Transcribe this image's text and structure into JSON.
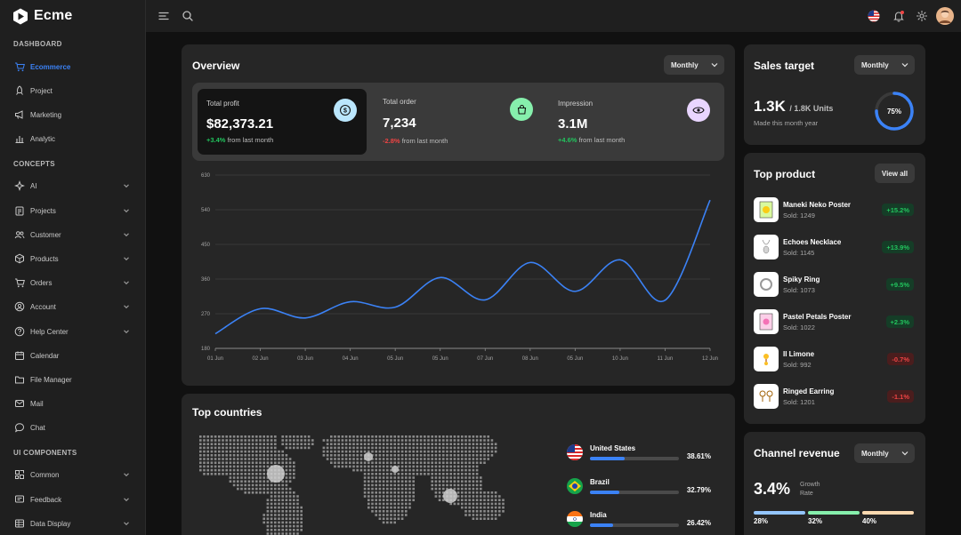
{
  "app": {
    "name": "Ecme"
  },
  "sidebar": {
    "sections": [
      {
        "title": "DASHBOARD",
        "items": [
          {
            "label": "Ecommerce",
            "icon": "cart-icon",
            "active": true,
            "has_children": false
          },
          {
            "label": "Project",
            "icon": "rocket-icon",
            "has_children": false
          },
          {
            "label": "Marketing",
            "icon": "megaphone-icon",
            "has_children": false
          },
          {
            "label": "Analytic",
            "icon": "bar-chart-icon",
            "has_children": false
          }
        ]
      },
      {
        "title": "CONCEPTS",
        "items": [
          {
            "label": "AI",
            "icon": "sparkle-icon",
            "has_children": true
          },
          {
            "label": "Projects",
            "icon": "clipboard-icon",
            "has_children": true
          },
          {
            "label": "Customer",
            "icon": "users-icon",
            "has_children": true
          },
          {
            "label": "Products",
            "icon": "box-icon",
            "has_children": true
          },
          {
            "label": "Orders",
            "icon": "cart-icon",
            "has_children": true
          },
          {
            "label": "Account",
            "icon": "user-circle-icon",
            "has_children": true
          },
          {
            "label": "Help Center",
            "icon": "help-icon",
            "has_children": true
          },
          {
            "label": "Calendar",
            "icon": "calendar-icon",
            "has_children": false
          },
          {
            "label": "File Manager",
            "icon": "folder-icon",
            "has_children": false
          },
          {
            "label": "Mail",
            "icon": "mail-icon",
            "has_children": false
          },
          {
            "label": "Chat",
            "icon": "chat-icon",
            "has_children": false
          }
        ]
      },
      {
        "title": "UI COMPONENTS",
        "items": [
          {
            "label": "Common",
            "icon": "layout-icon",
            "has_children": true
          },
          {
            "label": "Feedback",
            "icon": "feedback-icon",
            "has_children": true
          },
          {
            "label": "Data Display",
            "icon": "table-icon",
            "has_children": true
          }
        ]
      }
    ]
  },
  "overview": {
    "title": "Overview",
    "period": "Monthly",
    "stats": [
      {
        "label": "Total profit",
        "value": "$82,373.21",
        "change": "+3.4%",
        "suffix": "from last month",
        "trend": "up",
        "icon": "dollar-icon",
        "icon_bg": "#bae6fd"
      },
      {
        "label": "Total order",
        "value": "7,234",
        "change": "-2.8%",
        "suffix": "from last month",
        "trend": "down",
        "icon": "shopping-bag-icon",
        "icon_bg": "#86efac"
      },
      {
        "label": "Impression",
        "value": "3.1M",
        "change": "+4.6%",
        "suffix": "from last month",
        "trend": "up",
        "icon": "eye-icon",
        "icon_bg": "#e9d5ff"
      }
    ]
  },
  "chart_data": {
    "type": "line",
    "x": [
      "01 Jun",
      "02 Jun",
      "03 Jun",
      "04 Jun",
      "05 Jun",
      "05 Jun",
      "07 Jun",
      "08 Jun",
      "05 Jun",
      "10 Jun",
      "11 Jun",
      "12 Jun"
    ],
    "series": [
      {
        "values": [
          218,
          283,
          259,
          301,
          287,
          364,
          306,
          403,
          328,
          410,
          305,
          565
        ]
      }
    ],
    "ylim": [
      180,
      630
    ],
    "yticks": [
      180,
      270,
      360,
      450,
      540,
      630
    ],
    "grid": true,
    "color": "#3b82f6"
  },
  "sales_target": {
    "title": "Sales target",
    "period": "Monthly",
    "value": "1.3K",
    "total": "/ 1.8K Units",
    "caption": "Made this month year",
    "percent_label": "75%",
    "percent": 75
  },
  "top_product": {
    "title": "Top product",
    "view_all": "View all",
    "items": [
      {
        "name": "Maneki Neko Poster",
        "sold": "Sold: 1249",
        "change": "+15.2%",
        "trend": "up"
      },
      {
        "name": "Echoes Necklace",
        "sold": "Sold: 1145",
        "change": "+13.9%",
        "trend": "up"
      },
      {
        "name": "Spiky Ring",
        "sold": "Sold: 1073",
        "change": "+9.5%",
        "trend": "up"
      },
      {
        "name": "Pastel Petals Poster",
        "sold": "Sold: 1022",
        "change": "+2.3%",
        "trend": "up"
      },
      {
        "name": "Il Limone",
        "sold": "Sold: 992",
        "change": "-0.7%",
        "trend": "down"
      },
      {
        "name": "Ringed Earring",
        "sold": "Sold: 1201",
        "change": "-1.1%",
        "trend": "down"
      }
    ]
  },
  "top_countries": {
    "title": "Top countries",
    "items": [
      {
        "name": "United States",
        "percent_label": "38.61%",
        "value": 38.61
      },
      {
        "name": "Brazil",
        "percent_label": "32.79%",
        "value": 32.79
      },
      {
        "name": "India",
        "percent_label": "26.42%",
        "value": 26.42
      }
    ]
  },
  "channel_revenue": {
    "title": "Channel revenue",
    "period": "Monthly",
    "value": "3.4%",
    "caption_line1": "Growth",
    "caption_line2": "Rate",
    "segments": [
      {
        "label": "28%",
        "color": "#93c5fd"
      },
      {
        "label": "32%",
        "color": "#86efac"
      },
      {
        "label": "40%",
        "color": "#fcd9b0"
      }
    ]
  }
}
